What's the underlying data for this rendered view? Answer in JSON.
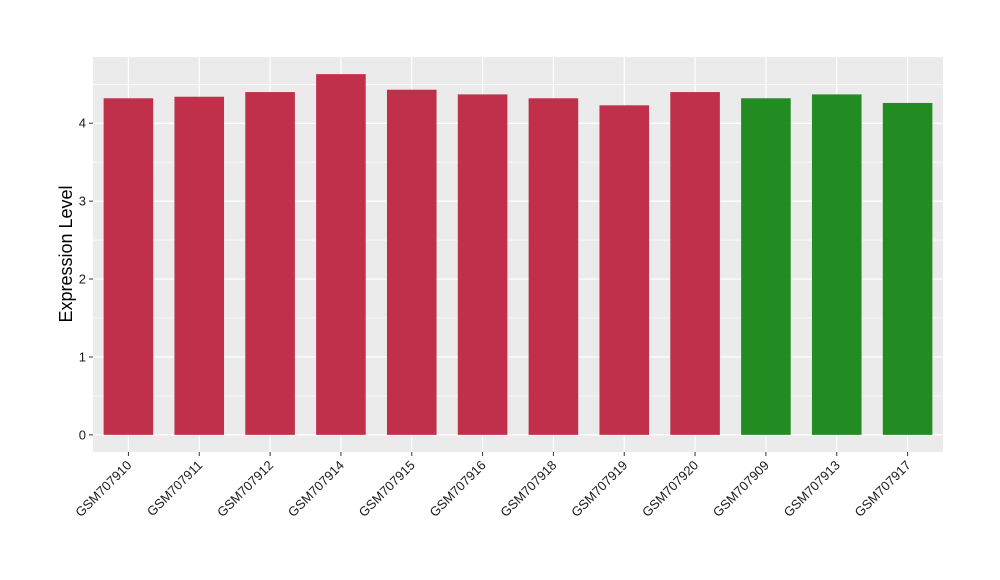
{
  "chart_data": {
    "type": "bar",
    "title": "",
    "xlabel": "",
    "ylabel": "Expression Level",
    "ylim": [
      -0.22,
      4.85
    ],
    "yticks": [
      0,
      1,
      2,
      3,
      4
    ],
    "grid": true,
    "categories": [
      "GSM707910",
      "GSM707911",
      "GSM707912",
      "GSM707914",
      "GSM707915",
      "GSM707916",
      "GSM707918",
      "GSM707919",
      "GSM707920",
      "GSM707909",
      "GSM707913",
      "GSM707917"
    ],
    "values": [
      4.32,
      4.34,
      4.4,
      4.63,
      4.43,
      4.37,
      4.32,
      4.23,
      4.4,
      4.32,
      4.37,
      4.26
    ],
    "bar_colors": [
      "#c0304a",
      "#c0304a",
      "#c0304a",
      "#c0304a",
      "#c0304a",
      "#c0304a",
      "#c0304a",
      "#c0304a",
      "#c0304a",
      "#228b22",
      "#228b22",
      "#228b22"
    ],
    "panel_color": "#ebebeb",
    "grid_color": "#ffffff"
  }
}
